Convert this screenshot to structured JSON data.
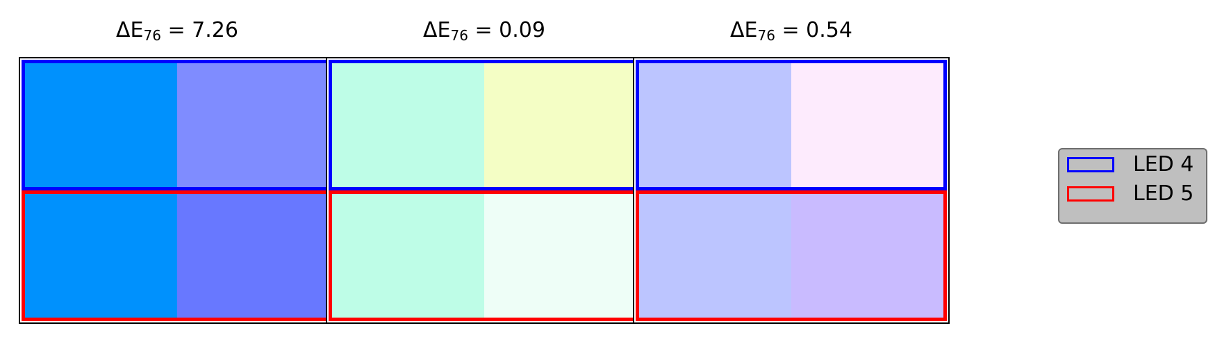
{
  "chart_data": {
    "type": "color-comparison",
    "panels": [
      {
        "title_prefix": "ΔE",
        "title_sub": "76",
        "title_suffix": " = 7.26",
        "delta_e76": 7.26,
        "rows": [
          {
            "series": "LED 4",
            "left": "#0091fd",
            "right": "#7f8cff"
          },
          {
            "series": "LED 5",
            "left": "#0091fd",
            "right": "#6878ff"
          }
        ]
      },
      {
        "title_prefix": "ΔE",
        "title_sub": "76",
        "title_suffix": " = 0.09",
        "delta_e76": 0.09,
        "rows": [
          {
            "series": "LED 4",
            "left": "#befde7",
            "right": "#f4fec5"
          },
          {
            "series": "LED 5",
            "left": "#befde7",
            "right": "#eefef7"
          }
        ]
      },
      {
        "title_prefix": "ΔE",
        "title_sub": "76",
        "title_suffix": " = 0.54",
        "delta_e76": 0.54,
        "rows": [
          {
            "series": "LED 4",
            "left": "#bcc5ff",
            "right": "#fdebfd"
          },
          {
            "series": "LED 5",
            "left": "#bcc5ff",
            "right": "#c9bbff"
          }
        ]
      }
    ],
    "legend": {
      "placement": "right",
      "background": "#bfbfbf",
      "items": [
        {
          "label": "LED 4",
          "color": "#0000ff"
        },
        {
          "label": "LED 5",
          "color": "#ff0000"
        }
      ]
    }
  }
}
